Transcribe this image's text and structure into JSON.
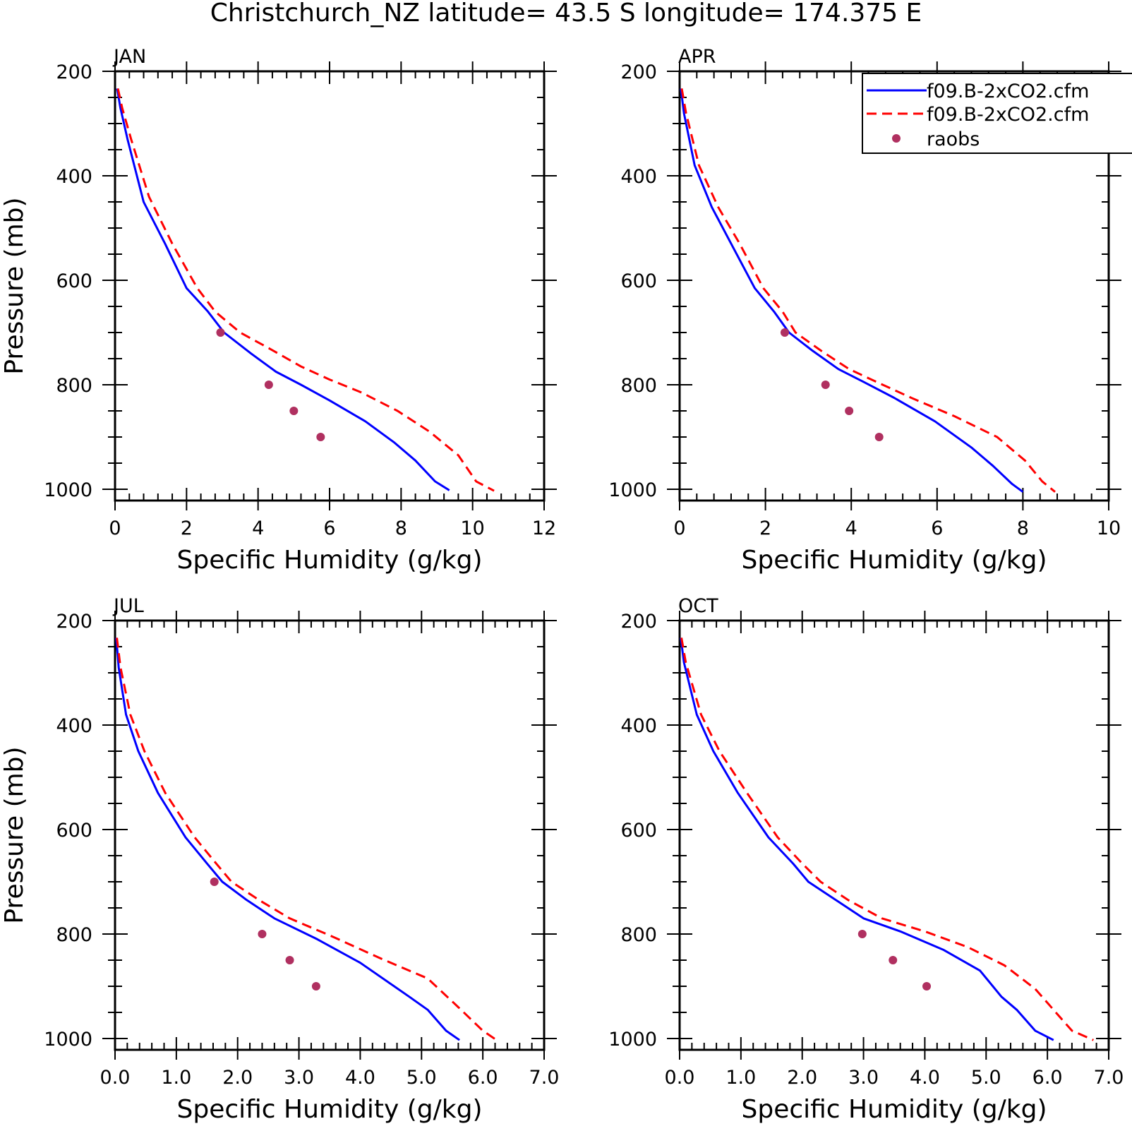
{
  "title": "Christchurch_NZ  latitude= 43.5 S longitude= 174.375 E",
  "legend": {
    "entries": [
      {
        "label": "f09.B-2xCO2.cfm",
        "style": "solid",
        "color": "#0000ff"
      },
      {
        "label": "f09.B-2xCO2.cfm",
        "style": "dashed",
        "color": "#ff0000"
      },
      {
        "label": "raobs",
        "style": "marker",
        "color": "#b03060"
      }
    ],
    "placement": "top-right of APR panel"
  },
  "colors": {
    "model1": "#0000ff",
    "model2": "#ff0000",
    "obs": "#b03060",
    "axes": "#000000"
  },
  "chart_data": [
    {
      "type": "line",
      "panel": "JAN",
      "xlabel": "Specific Humidity (g/kg)",
      "ylabel": "Pressure (mb)",
      "xlim": [
        0,
        12
      ],
      "ylim": [
        200,
        1000
      ],
      "y_inverted": true,
      "xticks": [
        "0",
        "2",
        "4",
        "6",
        "8",
        "10",
        "12"
      ],
      "yticks": [
        "200",
        "400",
        "600",
        "800",
        "1000"
      ],
      "series": [
        {
          "name": "f09.B-2xCO2.cfm",
          "style": "solid",
          "x": [
            0.06,
            0.15,
            0.35,
            0.8,
            1.4,
            2.0,
            2.6,
            3.05,
            3.8,
            4.5,
            5.2,
            6.0,
            7.0,
            7.8,
            8.4,
            8.95,
            9.35
          ],
          "y": [
            233,
            270,
            330,
            450,
            530,
            615,
            660,
            700,
            740,
            775,
            800,
            830,
            870,
            910,
            945,
            985,
            1002
          ]
        },
        {
          "name": "f09.B-2xCO2.cfm",
          "style": "dashed",
          "x": [
            0.08,
            0.2,
            0.45,
            0.95,
            1.6,
            2.3,
            2.8,
            3.5,
            4.3,
            5.2,
            6.0,
            6.9,
            7.9,
            8.8,
            9.6,
            10.1,
            10.6
          ],
          "y": [
            233,
            270,
            330,
            440,
            530,
            615,
            660,
            700,
            730,
            765,
            790,
            815,
            850,
            890,
            935,
            985,
            1003
          ]
        },
        {
          "name": "raobs",
          "style": "marker",
          "x": [
            2.95,
            4.3,
            5.0,
            5.75
          ],
          "y": [
            700,
            800,
            850,
            900
          ]
        }
      ]
    },
    {
      "type": "line",
      "panel": "APR",
      "xlabel": "Specific Humidity (g/kg)",
      "ylabel": "",
      "xlim": [
        0,
        10
      ],
      "ylim": [
        200,
        1000
      ],
      "y_inverted": true,
      "xticks": [
        "0",
        "2",
        "4",
        "6",
        "8",
        "10"
      ],
      "yticks": [
        "200",
        "400",
        "600",
        "800",
        "1000"
      ],
      "series": [
        {
          "name": "f09.B-2xCO2.cfm",
          "style": "solid",
          "x": [
            0.03,
            0.1,
            0.35,
            0.75,
            1.2,
            1.75,
            2.2,
            2.55,
            3.1,
            3.7,
            4.3,
            5.0,
            5.95,
            6.8,
            7.3,
            7.75,
            8.0
          ],
          "y": [
            233,
            280,
            380,
            460,
            530,
            615,
            660,
            700,
            735,
            770,
            795,
            825,
            870,
            920,
            955,
            990,
            1005
          ]
        },
        {
          "name": "f09.B-2xCO2.cfm",
          "style": "dashed",
          "x": [
            0.05,
            0.15,
            0.45,
            0.9,
            1.4,
            1.95,
            2.4,
            2.7,
            3.3,
            3.95,
            4.6,
            5.4,
            6.4,
            7.4,
            8.05,
            8.45,
            8.75
          ],
          "y": [
            233,
            280,
            380,
            460,
            530,
            615,
            660,
            700,
            735,
            770,
            795,
            825,
            860,
            900,
            945,
            985,
            1005
          ]
        },
        {
          "name": "raobs",
          "style": "marker",
          "x": [
            2.45,
            3.4,
            3.95,
            4.65
          ],
          "y": [
            700,
            800,
            850,
            900
          ]
        }
      ]
    },
    {
      "type": "line",
      "panel": "JUL",
      "xlabel": "Specific Humidity (g/kg)",
      "ylabel": "Pressure (mb)",
      "xlim": [
        0.0,
        7.0
      ],
      "ylim": [
        200,
        1000
      ],
      "y_inverted": true,
      "xticks": [
        "0.0",
        "1.0",
        "2.0",
        "3.0",
        "4.0",
        "5.0",
        "6.0",
        "7.0"
      ],
      "yticks": [
        "200",
        "400",
        "600",
        "800",
        "1000"
      ],
      "series": [
        {
          "name": "f09.B-2xCO2.cfm",
          "style": "solid",
          "x": [
            0.02,
            0.06,
            0.18,
            0.38,
            0.7,
            1.15,
            1.5,
            1.75,
            2.15,
            2.6,
            3.3,
            4.0,
            4.8,
            5.1,
            5.4,
            5.62
          ],
          "y": [
            233,
            290,
            380,
            450,
            530,
            615,
            665,
            700,
            735,
            770,
            810,
            855,
            920,
            945,
            985,
            1003
          ]
        },
        {
          "name": "f09.B-2xCO2.cfm",
          "style": "dashed",
          "x": [
            0.03,
            0.09,
            0.25,
            0.48,
            0.82,
            1.3,
            1.65,
            1.9,
            2.35,
            2.85,
            3.55,
            4.3,
            5.1,
            5.6,
            6.0,
            6.25
          ],
          "y": [
            233,
            290,
            380,
            450,
            530,
            615,
            665,
            700,
            735,
            770,
            805,
            845,
            885,
            940,
            985,
            1005
          ]
        },
        {
          "name": "raobs",
          "style": "marker",
          "x": [
            1.62,
            2.4,
            2.85,
            3.28
          ],
          "y": [
            700,
            800,
            850,
            900
          ]
        }
      ]
    },
    {
      "type": "line",
      "panel": "OCT",
      "xlabel": "Specific Humidity (g/kg)",
      "ylabel": "",
      "xlim": [
        0.0,
        7.0
      ],
      "ylim": [
        200,
        1000
      ],
      "y_inverted": true,
      "xticks": [
        "0.0",
        "1.0",
        "2.0",
        "3.0",
        "4.0",
        "5.0",
        "6.0",
        "7.0"
      ],
      "yticks": [
        "200",
        "400",
        "600",
        "800",
        "1000"
      ],
      "series": [
        {
          "name": "f09.B-2xCO2.cfm",
          "style": "solid",
          "x": [
            0.02,
            0.07,
            0.28,
            0.55,
            0.95,
            1.45,
            1.85,
            2.1,
            2.55,
            3.0,
            3.6,
            4.3,
            4.9,
            5.25,
            5.5,
            5.8,
            6.1
          ],
          "y": [
            233,
            280,
            380,
            450,
            530,
            615,
            665,
            700,
            735,
            770,
            795,
            830,
            870,
            920,
            945,
            985,
            1003
          ]
        },
        {
          "name": "f09.B-2xCO2.cfm",
          "style": "dashed",
          "x": [
            0.03,
            0.1,
            0.35,
            0.65,
            1.1,
            1.6,
            2.0,
            2.3,
            2.75,
            3.3,
            4.0,
            4.7,
            5.3,
            5.8,
            6.1,
            6.4,
            6.75
          ],
          "y": [
            233,
            280,
            380,
            450,
            530,
            615,
            665,
            700,
            735,
            770,
            795,
            825,
            860,
            905,
            945,
            985,
            1003
          ]
        },
        {
          "name": "raobs",
          "style": "marker",
          "x": [
            2.98,
            3.48,
            4.03
          ],
          "y": [
            800,
            850,
            900
          ]
        }
      ]
    }
  ]
}
